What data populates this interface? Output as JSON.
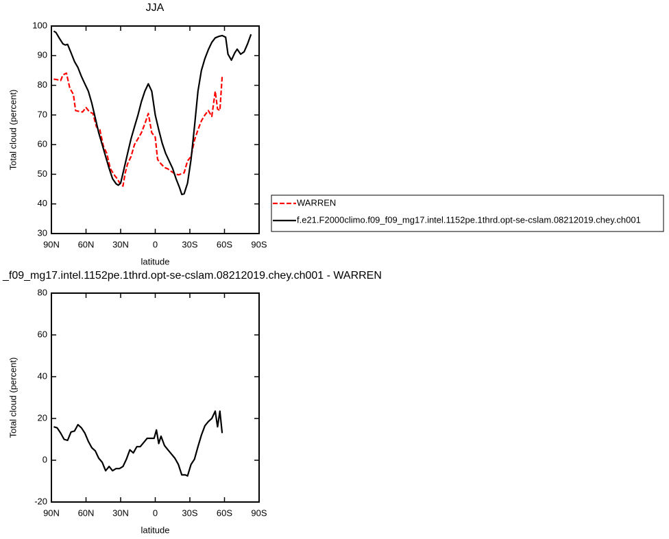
{
  "chart_data": [
    {
      "type": "line",
      "title": "JJA",
      "xlabel": "latitude",
      "ylabel": "Total cloud (percent)",
      "xlim": [
        90,
        -90
      ],
      "ylim": [
        30,
        100
      ],
      "xticks": [
        {
          "value": 90,
          "label": "90N"
        },
        {
          "value": 60,
          "label": "60N"
        },
        {
          "value": 30,
          "label": "30N"
        },
        0,
        {
          "value": -30,
          "label": "30S"
        },
        {
          "value": -60,
          "label": "60S"
        },
        {
          "value": -90,
          "label": "90S"
        }
      ],
      "yticks": [
        30,
        40,
        50,
        60,
        70,
        80,
        90,
        100
      ],
      "legend": "right",
      "series": [
        {
          "name": "WARREN",
          "color": "#ff0000",
          "linestyle": "dashed",
          "x": [
            88,
            85,
            82,
            80,
            77,
            74,
            71,
            69,
            66,
            63,
            60,
            57,
            54,
            51,
            48,
            45,
            42,
            39,
            36,
            33,
            30,
            28,
            26,
            24,
            21,
            18,
            15,
            12,
            9,
            6,
            3,
            0,
            -2,
            -5,
            -8,
            -11,
            -14,
            -17,
            -20,
            -23,
            -25,
            -28,
            -31,
            -34,
            -37,
            -40,
            -43,
            -46,
            -49,
            -52,
            -54,
            -56,
            -58
          ],
          "values": [
            82.1,
            81.9,
            81.6,
            83.5,
            84.1,
            79,
            77,
            71.5,
            71.2,
            71,
            72.5,
            71,
            70.5,
            66,
            65,
            59.5,
            57,
            52,
            50,
            48.5,
            46.5,
            46,
            50.5,
            53.5,
            56,
            60,
            62,
            64,
            67,
            70.5,
            64,
            62.5,
            55,
            53.5,
            52.3,
            51.8,
            50.9,
            50.2,
            49.8,
            50.2,
            50.5,
            54.5,
            56,
            61.5,
            65,
            68,
            70,
            71.5,
            69.5,
            78,
            72,
            71.5,
            83
          ]
        },
        {
          "name": "f.e21.F2000climo.f09_f09_mg17.intel.1152pe.1thrd.opt-se-cslam.08212019.chey.ch001",
          "color": "#000000",
          "linestyle": "solid",
          "x": [
            88,
            86,
            83,
            80,
            78,
            76,
            73,
            70,
            67,
            64,
            61,
            58,
            55,
            52,
            49,
            46,
            43,
            40,
            37,
            34,
            32,
            30,
            27,
            24,
            21,
            18,
            15,
            12,
            9,
            6,
            3,
            0,
            -3,
            -6,
            -9,
            -12,
            -15,
            -18,
            -21,
            -23,
            -25,
            -28,
            -31,
            -34,
            -37,
            -40,
            -43,
            -46,
            -49,
            -52,
            -55,
            -58,
            -61,
            -63,
            -66,
            -69,
            -71,
            -74,
            -77,
            -80,
            -83
          ],
          "values": [
            98.3,
            97.8,
            95.8,
            94,
            93.6,
            93.8,
            91,
            88,
            86,
            83,
            80.5,
            78,
            74,
            69,
            64,
            60,
            56,
            52,
            48.5,
            46.8,
            46.3,
            47,
            52,
            57,
            62,
            66,
            70,
            74.5,
            78,
            80.5,
            78,
            70,
            65,
            60.5,
            57,
            54.5,
            52,
            48.5,
            45.5,
            43.2,
            43.4,
            47,
            55,
            66,
            78,
            85,
            89,
            92,
            94.5,
            96,
            96.5,
            96.8,
            96.2,
            90.5,
            88.5,
            91,
            92.2,
            90.5,
            91.3,
            94,
            97.2
          ]
        }
      ]
    },
    {
      "type": "line",
      "title": "_f09_mg17.intel.1152pe.1thrd.opt-se-cslam.08212019.chey.ch001 - WARREN",
      "xlabel": "latitude",
      "ylabel": "Total cloud (percent)",
      "xlim": [
        90,
        -90
      ],
      "ylim": [
        -20,
        80
      ],
      "xticks": [
        {
          "value": 90,
          "label": "90N"
        },
        {
          "value": 60,
          "label": "60N"
        },
        {
          "value": 30,
          "label": "30N"
        },
        0,
        {
          "value": -30,
          "label": "30S"
        },
        {
          "value": -60,
          "label": "60S"
        },
        {
          "value": -90,
          "label": "90S"
        }
      ],
      "yticks": [
        -20,
        0,
        20,
        40,
        60,
        80
      ],
      "series": [
        {
          "color": "#000000",
          "linestyle": "solid",
          "x": [
            88,
            85,
            82,
            79,
            76,
            73,
            70,
            67,
            64,
            61,
            58,
            55,
            52,
            49,
            46,
            43,
            40,
            37,
            34,
            31,
            28,
            25,
            22,
            19,
            16,
            13,
            10,
            7,
            4,
            1,
            -1,
            -3,
            -5,
            -8,
            -11,
            -14,
            -17,
            -20,
            -23,
            -26,
            -28,
            -31,
            -34,
            -37,
            -40,
            -43,
            -46,
            -49,
            -52,
            -54,
            -56,
            -58
          ],
          "values": [
            16,
            15.5,
            13,
            10,
            9.5,
            13.5,
            14,
            17,
            15.5,
            13,
            9,
            6,
            4.5,
            1,
            -1,
            -5,
            -3,
            -5,
            -4,
            -4,
            -3,
            0.5,
            5,
            3.5,
            6.5,
            6.5,
            8.5,
            10.5,
            10.5,
            10.5,
            14.5,
            8,
            11.5,
            7,
            5,
            3,
            1,
            -2,
            -7,
            -7,
            -7.5,
            -2,
            0.5,
            6.5,
            12,
            16.5,
            18.5,
            20,
            23.5,
            16,
            23.5,
            13
          ]
        }
      ]
    }
  ]
}
